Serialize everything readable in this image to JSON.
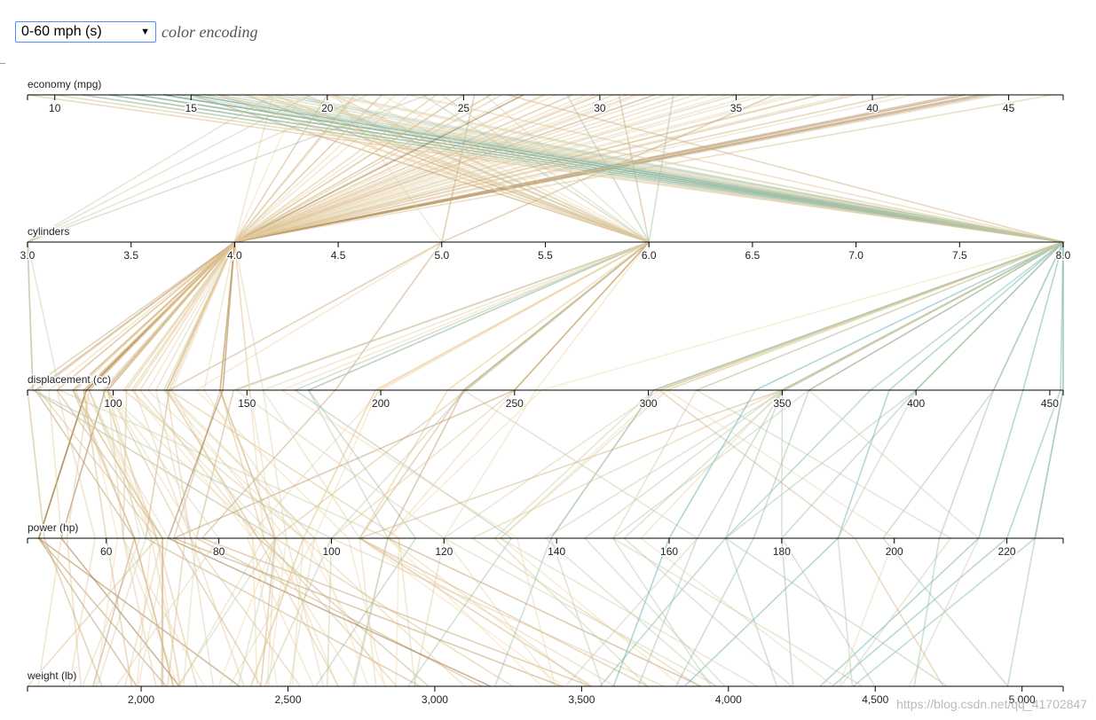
{
  "controls": {
    "selected_encoding": "0-60 mph (s)",
    "encoding_label": "color encoding"
  },
  "watermark": "https://blog.csdn.net/qq_41702847",
  "colors": {
    "slow": "#8c5a1e",
    "mid": "#f1d7a8",
    "fast": "#4ea7a3",
    "axis": "#000000"
  },
  "chart_data": {
    "type": "parallel-coordinates",
    "axes": [
      {
        "name": "economy (mpg)",
        "min": 9,
        "max": 47,
        "ticks": [
          10,
          15,
          20,
          25,
          30,
          35,
          40,
          45
        ],
        "tick_labels": [
          "10",
          "15",
          "20",
          "25",
          "30",
          "35",
          "40",
          "45"
        ]
      },
      {
        "name": "cylinders",
        "min": 3,
        "max": 8,
        "ticks": [
          3,
          3.5,
          4,
          4.5,
          5,
          5.5,
          6,
          6.5,
          7,
          7.5,
          8
        ],
        "tick_labels": [
          "3.0",
          "3.5",
          "4.0",
          "4.5",
          "5.0",
          "5.5",
          "6.0",
          "6.5",
          "7.0",
          "7.5",
          "8.0"
        ]
      },
      {
        "name": "displacement (cc)",
        "min": 68,
        "max": 455,
        "ticks": [
          100,
          150,
          200,
          250,
          300,
          350,
          400,
          450
        ],
        "tick_labels": [
          "100",
          "150",
          "200",
          "250",
          "300",
          "350",
          "400",
          "450"
        ]
      },
      {
        "name": "power (hp)",
        "min": 46,
        "max": 230,
        "ticks": [
          60,
          80,
          100,
          120,
          140,
          160,
          180,
          200,
          220
        ],
        "tick_labels": [
          "60",
          "80",
          "100",
          "120",
          "140",
          "160",
          "180",
          "200",
          "220"
        ]
      },
      {
        "name": "weight (lb)",
        "min": 1613,
        "max": 5140,
        "ticks": [
          2000,
          2500,
          3000,
          3500,
          4000,
          4500,
          5000
        ],
        "tick_labels": [
          "2,000",
          "2,500",
          "3,000",
          "3,500",
          "4,000",
          "4,500",
          "5,000"
        ]
      }
    ],
    "color_variable": "0-60 mph (s)",
    "records": [
      [
        46.6,
        4,
        86,
        65,
        2110,
        17.9
      ],
      [
        44.6,
        4,
        91,
        67,
        1850,
        13.8
      ],
      [
        44.3,
        4,
        90,
        48,
        2085,
        21.7
      ],
      [
        44.0,
        4,
        97,
        52,
        2130,
        24.6
      ],
      [
        43.4,
        4,
        90,
        48,
        2335,
        23.7
      ],
      [
        43.1,
        4,
        90,
        48,
        1985,
        21.5
      ],
      [
        41.5,
        4,
        98,
        76,
        2144,
        14.7
      ],
      [
        40.8,
        4,
        85,
        65,
        2110,
        19.2
      ],
      [
        39.4,
        4,
        85,
        70,
        2070,
        18.6
      ],
      [
        38.0,
        4,
        105,
        63,
        2125,
        14.7
      ],
      [
        37.3,
        4,
        91,
        69,
        2130,
        14.7
      ],
      [
        36.1,
        4,
        98,
        66,
        1800,
        14.4
      ],
      [
        35.0,
        4,
        72,
        69,
        1613,
        18.0
      ],
      [
        34.1,
        4,
        91,
        68,
        1985,
        16.0
      ],
      [
        33.0,
        4,
        91,
        53,
        1795,
        17.4
      ],
      [
        32.0,
        4,
        71,
        65,
        1836,
        21.0
      ],
      [
        31.0,
        4,
        76,
        52,
        1649,
        16.5
      ],
      [
        31.5,
        4,
        89,
        71,
        1990,
        14.9
      ],
      [
        30.0,
        4,
        79,
        70,
        2074,
        19.5
      ],
      [
        29.0,
        4,
        68,
        49,
        1867,
        19.5
      ],
      [
        28.0,
        4,
        140,
        90,
        2264,
        15.5
      ],
      [
        27.0,
        4,
        97,
        88,
        2130,
        14.5
      ],
      [
        26.0,
        4,
        96,
        69,
        2189,
        18.0
      ],
      [
        25.0,
        4,
        104,
        95,
        2375,
        17.5
      ],
      [
        24.0,
        4,
        113,
        95,
        2372,
        15.0
      ],
      [
        23.0,
        4,
        120,
        97,
        2506,
        14.5
      ],
      [
        22.0,
        4,
        140,
        72,
        2408,
        19.0
      ],
      [
        21.0,
        4,
        120,
        87,
        2979,
        19.5
      ],
      [
        20.0,
        4,
        140,
        90,
        2408,
        19.5
      ],
      [
        19.0,
        4,
        121,
        112,
        2868,
        15.5
      ],
      [
        18.0,
        4,
        121,
        112,
        2933,
        14.5
      ],
      [
        36.4,
        5,
        121,
        67,
        2950,
        19.9
      ],
      [
        25.4,
        5,
        183,
        77,
        3530,
        20.1
      ],
      [
        20.3,
        5,
        131,
        103,
        2830,
        15.9
      ],
      [
        19.4,
        3,
        70,
        90,
        2330,
        13.5
      ],
      [
        21.5,
        3,
        80,
        110,
        2720,
        13.5
      ],
      [
        23.7,
        3,
        70,
        100,
        2420,
        12.5
      ],
      [
        18.0,
        3,
        70,
        90,
        2124,
        13.5
      ],
      [
        32.7,
        6,
        168,
        132,
        2910,
        11.4
      ],
      [
        30.7,
        6,
        145,
        76,
        3160,
        19.6
      ],
      [
        28.8,
        6,
        173,
        115,
        2595,
        11.3
      ],
      [
        25.8,
        6,
        156,
        92,
        2620,
        14.4
      ],
      [
        24.2,
        6,
        146,
        120,
        2930,
        13.8
      ],
      [
        23.5,
        6,
        173,
        110,
        2725,
        12.6
      ],
      [
        22.0,
        6,
        198,
        95,
        2833,
        15.5
      ],
      [
        21.0,
        6,
        200,
        85,
        2587,
        16.0
      ],
      [
        20.2,
        6,
        232,
        90,
        3265,
        18.2
      ],
      [
        19.2,
        6,
        231,
        105,
        3535,
        19.2
      ],
      [
        18.1,
        6,
        258,
        120,
        3410,
        15.1
      ],
      [
        18.0,
        6,
        225,
        105,
        3613,
        16.5
      ],
      [
        17.5,
        6,
        250,
        110,
        3520,
        16.4
      ],
      [
        17.0,
        6,
        231,
        110,
        3907,
        21.0
      ],
      [
        16.0,
        6,
        250,
        100,
        3781,
        17.0
      ],
      [
        16.0,
        6,
        225,
        105,
        3439,
        15.5
      ],
      [
        15.0,
        6,
        250,
        72,
        3432,
        21.0
      ],
      [
        18.0,
        6,
        199,
        97,
        2774,
        15.5
      ],
      [
        19.0,
        6,
        232,
        100,
        2634,
        13.0
      ],
      [
        20.0,
        6,
        198,
        95,
        3102,
        16.5
      ],
      [
        26.6,
        8,
        350,
        105,
        3725,
        19.0
      ],
      [
        23.0,
        8,
        350,
        125,
        3900,
        17.4
      ],
      [
        20.2,
        8,
        302,
        139,
        3570,
        12.8
      ],
      [
        19.9,
        8,
        260,
        110,
        3365,
        15.5
      ],
      [
        18.5,
        8,
        360,
        150,
        3940,
        13.0
      ],
      [
        17.6,
        8,
        302,
        129,
        3725,
        13.4
      ],
      [
        17.0,
        8,
        305,
        130,
        3840,
        15.4
      ],
      [
        16.5,
        8,
        351,
        138,
        3955,
        13.2
      ],
      [
        16.0,
        8,
        400,
        180,
        4220,
        11.1
      ],
      [
        15.5,
        8,
        350,
        170,
        4165,
        11.4
      ],
      [
        15.0,
        8,
        390,
        190,
        3850,
        8.5
      ],
      [
        15.0,
        8,
        383,
        170,
        3563,
        10.0
      ],
      [
        15.0,
        8,
        350,
        165,
        3693,
        11.5
      ],
      [
        14.0,
        8,
        454,
        220,
        4354,
        9.0
      ],
      [
        14.0,
        8,
        440,
        215,
        4312,
        8.5
      ],
      [
        14.0,
        8,
        455,
        225,
        4425,
        10.0
      ],
      [
        14.0,
        8,
        340,
        160,
        3609,
        8.0
      ],
      [
        13.0,
        8,
        307,
        130,
        4098,
        14.0
      ],
      [
        13.0,
        8,
        350,
        145,
        3988,
        13.0
      ],
      [
        13.0,
        8,
        400,
        170,
        4746,
        12.0
      ],
      [
        13.0,
        8,
        400,
        190,
        4422,
        12.5
      ],
      [
        12.0,
        8,
        429,
        198,
        4952,
        11.5
      ],
      [
        12.0,
        8,
        455,
        225,
        4951,
        11.0
      ],
      [
        12.0,
        8,
        350,
        180,
        4499,
        12.5
      ],
      [
        11.0,
        8,
        318,
        210,
        4382,
        13.5
      ],
      [
        11.0,
        8,
        429,
        208,
        4633,
        11.0
      ],
      [
        10.0,
        8,
        360,
        215,
        4615,
        14.0
      ],
      [
        10.0,
        8,
        307,
        200,
        4376,
        15.0
      ],
      [
        9.0,
        8,
        304,
        193,
        4732,
        18.5
      ],
      [
        13.0,
        8,
        360,
        175,
        3821,
        11.0
      ],
      [
        14.5,
        8,
        351,
        152,
        4215,
        12.8
      ],
      [
        16.9,
        8,
        350,
        155,
        4360,
        14.9
      ],
      [
        18.1,
        8,
        302,
        139,
        3205,
        11.2
      ],
      [
        17.7,
        6,
        231,
        165,
        3445,
        13.4
      ],
      [
        16.2,
        6,
        163,
        133,
        3410,
        15.8
      ],
      [
        15.5,
        8,
        304,
        120,
        3962,
        13.9
      ],
      [
        14.0,
        8,
        318,
        150,
        4457,
        13.5
      ],
      [
        24.0,
        4,
        107,
        90,
        2430,
        14.5
      ],
      [
        26.0,
        4,
        116,
        75,
        2246,
        14.0
      ],
      [
        22.0,
        4,
        122,
        86,
        2395,
        16.0
      ],
      [
        28.0,
        4,
        107,
        86,
        2464,
        15.5
      ],
      [
        21.1,
        4,
        134,
        95,
        2515,
        14.8
      ],
      [
        27.2,
        4,
        141,
        71,
        3190,
        24.8
      ],
      [
        25.0,
        4,
        110,
        87,
        2672,
        17.5
      ],
      [
        30.5,
        4,
        98,
        63,
        2051,
        17.0
      ],
      [
        29.8,
        4,
        89,
        62,
        1845,
        15.3
      ],
      [
        33.5,
        4,
        85,
        70,
        1945,
        16.8
      ],
      [
        37.0,
        4,
        119,
        92,
        2434,
        15.0
      ],
      [
        38.1,
        4,
        89,
        60,
        1968,
        18.8
      ],
      [
        31.3,
        4,
        120,
        75,
        2542,
        17.5
      ],
      [
        34.7,
        4,
        105,
        63,
        2215,
        14.9
      ],
      [
        27.9,
        4,
        156,
        105,
        2800,
        14.4
      ],
      [
        32.4,
        4,
        108,
        75,
        2350,
        16.8
      ],
      [
        26.4,
        4,
        140,
        88,
        2870,
        18.1
      ],
      [
        29.5,
        4,
        98,
        68,
        2135,
        16.6
      ],
      [
        24.5,
        4,
        151,
        88,
        2740,
        16.0
      ],
      [
        22.5,
        4,
        119,
        97,
        2300,
        14.7
      ],
      [
        39.1,
        4,
        79,
        58,
        1755,
        16.9
      ],
      [
        35.7,
        4,
        98,
        80,
        1915,
        14.4
      ],
      [
        28.4,
        4,
        151,
        90,
        2670,
        16.0
      ],
      [
        43.8,
        4,
        98,
        74,
        2090,
        18.1
      ]
    ]
  }
}
